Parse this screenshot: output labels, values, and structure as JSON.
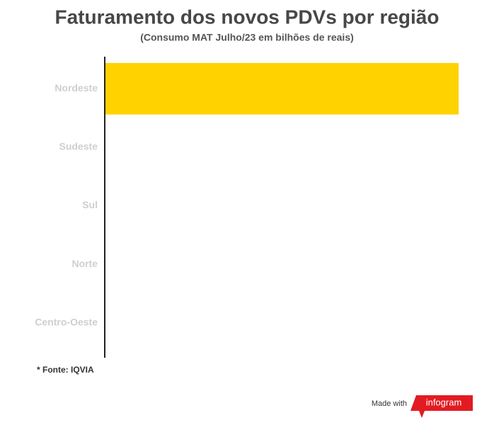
{
  "chart_data": {
    "type": "bar",
    "orientation": "horizontal",
    "title": "Faturamento dos novos PDVs por região",
    "subtitle": "(Consumo MAT Julho/23 em bilhões de reais)",
    "categories": [
      "Nordeste",
      "Sudeste",
      "Sul",
      "Norte",
      "Centro-Oeste"
    ],
    "values": [
      1,
      0,
      0,
      0,
      0
    ],
    "color": "#ffd200",
    "footnote": "* Fonte: IQVIA",
    "credit": "Made with",
    "brand": "infogram"
  }
}
